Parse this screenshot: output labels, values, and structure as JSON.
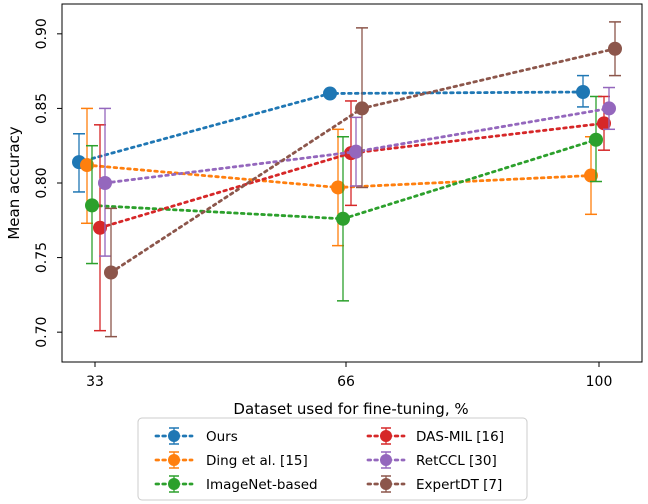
{
  "chart_data": {
    "type": "line",
    "subtype": "errorbar",
    "title": "",
    "xlabel": "Dataset used for fine-tuning, %",
    "ylabel": "Mean accuracy",
    "categories": [
      "33",
      "66",
      "100"
    ],
    "ylim": [
      0.68,
      0.92
    ],
    "yticks": [
      "0.70",
      "0.75",
      "0.80",
      "0.85",
      "0.90"
    ],
    "grid": false,
    "legend_position": "bottom-center, outside plot",
    "series": [
      {
        "name": "Ours",
        "color": "#1f77b4",
        "values": [
          0.814,
          0.86,
          0.861
        ],
        "err_low": [
          0.794,
          0.86,
          0.851
        ],
        "err_high": [
          0.833,
          0.86,
          0.872
        ]
      },
      {
        "name": "Ding et al. [15]",
        "color": "#ff7f0e",
        "values": [
          0.812,
          0.797,
          0.805
        ],
        "err_low": [
          0.773,
          0.758,
          0.779
        ],
        "err_high": [
          0.85,
          0.836,
          0.831
        ]
      },
      {
        "name": "ImageNet-based",
        "color": "#2ca02c",
        "values": [
          0.785,
          0.776,
          0.829
        ],
        "err_low": [
          0.746,
          0.721,
          0.801
        ],
        "err_high": [
          0.825,
          0.831,
          0.858
        ]
      },
      {
        "name": "DAS-MIL [16]",
        "color": "#d62728",
        "values": [
          0.77,
          0.82,
          0.84
        ],
        "err_low": [
          0.701,
          0.785,
          0.822
        ],
        "err_high": [
          0.839,
          0.855,
          0.858
        ]
      },
      {
        "name": "RetCCL [30]",
        "color": "#9467bd",
        "values": [
          0.8,
          0.821,
          0.85
        ],
        "err_low": [
          0.751,
          0.798,
          0.836
        ],
        "err_high": [
          0.85,
          0.844,
          0.864
        ]
      },
      {
        "name": "ExpertDT [7]",
        "color": "#8c564b",
        "values": [
          0.74,
          0.85,
          0.89
        ],
        "err_low": [
          0.697,
          0.797,
          0.872
        ],
        "err_high": [
          0.783,
          0.904,
          0.908
        ]
      }
    ]
  }
}
